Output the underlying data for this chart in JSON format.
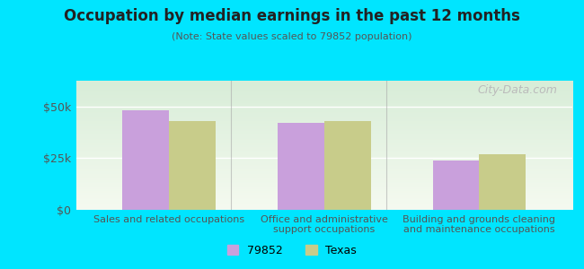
{
  "title": "Occupation by median earnings in the past 12 months",
  "subtitle": "(Note: State values scaled to 79852 population)",
  "categories": [
    "Sales and related occupations",
    "Office and administrative\nsupport occupations",
    "Building and grounds cleaning\nand maintenance occupations"
  ],
  "values_79852": [
    48000,
    42000,
    24000
  ],
  "values_texas": [
    43000,
    43000,
    27000
  ],
  "color_79852": "#c9a0dc",
  "color_texas": "#c8cc8a",
  "ylim": [
    0,
    62500
  ],
  "yticks": [
    0,
    25000,
    50000
  ],
  "ytick_labels": [
    "$0",
    "$25k",
    "$50k"
  ],
  "legend_labels": [
    "79852",
    "Texas"
  ],
  "bar_width": 0.3,
  "background_outer": "#00e5ff",
  "background_inner_top": "#e8f5e9",
  "background_inner_bottom": "#f0f7e6",
  "watermark": "City-Data.com"
}
